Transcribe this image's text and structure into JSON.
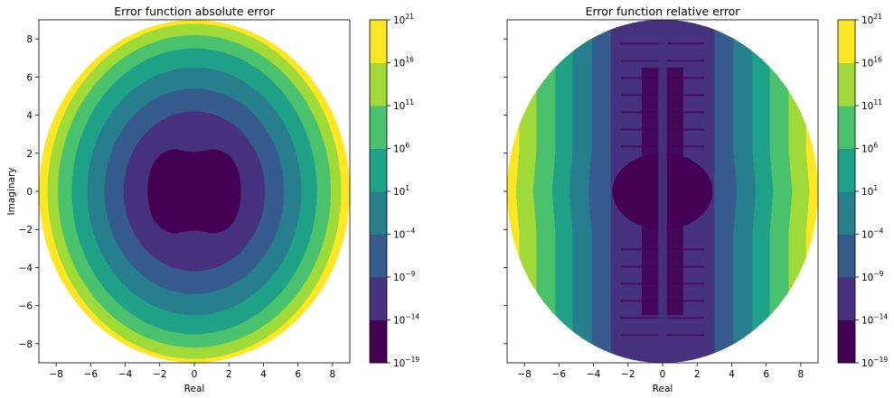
{
  "chart_data": [
    {
      "type": "heatmap",
      "title": "Error function absolute error",
      "xlabel": "Real",
      "ylabel": "Imaginary",
      "xlim": [
        -9,
        9
      ],
      "ylim": [
        -9,
        9
      ],
      "xticks": [
        -8,
        -6,
        -4,
        -2,
        0,
        2,
        4,
        6,
        8
      ],
      "yticks": [
        -8,
        -6,
        -4,
        -2,
        0,
        2,
        4,
        6,
        8
      ],
      "region": "disc, radius ≈ 9",
      "levels": [
        {
          "range": [
            "10^-19",
            "10^-14"
          ],
          "color": "#440154",
          "shape": "blob",
          "extent_x": [
            -2.7,
            2.7
          ],
          "extent_y": [
            -2.2,
            2.2
          ]
        },
        {
          "range": [
            "10^-14",
            "10^-9"
          ],
          "color": "#46327e",
          "shape": "ring",
          "extent_x": [
            -4.1,
            4.1
          ],
          "extent_y": [
            -4.2,
            4.2
          ]
        },
        {
          "range": [
            "10^-9",
            "10^-4"
          ],
          "color": "#365c8d",
          "shape": "ring",
          "extent_x": [
            -5.2,
            5.2
          ],
          "extent_y": [
            -5.4,
            5.4
          ]
        },
        {
          "range": [
            "10^-4",
            "10^1"
          ],
          "color": "#277f8e",
          "shape": "ring",
          "extent_x": [
            -6.2,
            6.2
          ],
          "extent_y": [
            -6.5,
            6.5
          ]
        },
        {
          "range": [
            "10^1",
            "10^6"
          ],
          "color": "#1fa187",
          "shape": "ring",
          "extent_x": [
            -7.1,
            7.1
          ],
          "extent_y": [
            -7.5,
            7.5
          ]
        },
        {
          "range": [
            "10^6",
            "10^11"
          ],
          "color": "#4ac16d",
          "shape": "ring",
          "extent_x": [
            -7.9,
            7.9
          ],
          "extent_y": [
            -8.2,
            8.2
          ]
        },
        {
          "range": [
            "10^11",
            "10^16"
          ],
          "color": "#a0da39",
          "shape": "ring",
          "extent_x": [
            -8.5,
            8.5
          ],
          "extent_y": [
            -8.8,
            8.8
          ]
        },
        {
          "range": [
            "10^16",
            "10^21"
          ],
          "color": "#fde725",
          "shape": "ring",
          "extent_x": [
            -9,
            9
          ],
          "extent_y": [
            -9,
            9
          ]
        }
      ]
    },
    {
      "type": "heatmap",
      "title": "Error function relative error",
      "xlabel": "Real",
      "ylabel": "",
      "xlim": [
        -9,
        9
      ],
      "ylim": [
        -9,
        9
      ],
      "xticks": [
        -8,
        -6,
        -4,
        -2,
        0,
        2,
        4,
        6,
        8
      ],
      "yticks": [
        -8,
        -6,
        -4,
        -2,
        0,
        2,
        4,
        6,
        8
      ],
      "region": "disc, radius ≈ 9",
      "levels": [
        {
          "range": [
            "10^-19",
            "10^-14"
          ],
          "color": "#440154",
          "shape": "blob plus vertical strip",
          "extent_x": [
            -2.9,
            2.9
          ],
          "extent_y": [
            -2.0,
            2.0
          ]
        },
        {
          "range": [
            "10^-14",
            "10^-9"
          ],
          "color": "#46327e",
          "shape": "vertical band",
          "extent_x": [
            -3.0,
            3.0
          ],
          "extent_y": [
            -9,
            9
          ]
        },
        {
          "range": [
            "10^-9",
            "10^-4"
          ],
          "color": "#365c8d",
          "shape": "side bands",
          "extent_x": [
            -4.1,
            4.1
          ],
          "extent_y": [
            -9,
            9
          ]
        },
        {
          "range": [
            "10^-4",
            "10^1"
          ],
          "color": "#277f8e",
          "shape": "side bands",
          "extent_x": [
            -5.2,
            5.2
          ],
          "extent_y": [
            -9,
            9
          ]
        },
        {
          "range": [
            "10^1",
            "10^6"
          ],
          "color": "#1fa187",
          "shape": "side bands",
          "extent_x": [
            -6.2,
            6.2
          ],
          "extent_y": [
            -9,
            9
          ]
        },
        {
          "range": [
            "10^6",
            "10^11"
          ],
          "color": "#4ac16d",
          "shape": "side bands",
          "extent_x": [
            -7.3,
            7.3
          ],
          "extent_y": [
            -9,
            9
          ]
        },
        {
          "range": [
            "10^11",
            "10^16"
          ],
          "color": "#a0da39",
          "shape": "side bands",
          "extent_x": [
            -8.3,
            8.3
          ],
          "extent_y": [
            -9,
            9
          ]
        },
        {
          "range": [
            "10^16",
            "10^21"
          ],
          "color": "#fde725",
          "shape": "side bands",
          "extent_x": [
            -9,
            9
          ],
          "extent_y": [
            -9,
            9
          ]
        }
      ]
    }
  ],
  "colorbar": {
    "ticks": [
      {
        "base": "10",
        "exp": "−19"
      },
      {
        "base": "10",
        "exp": "−14"
      },
      {
        "base": "10",
        "exp": "−9"
      },
      {
        "base": "10",
        "exp": "−4"
      },
      {
        "base": "10",
        "exp": "1"
      },
      {
        "base": "10",
        "exp": "6"
      },
      {
        "base": "10",
        "exp": "11"
      },
      {
        "base": "10",
        "exp": "16"
      },
      {
        "base": "10",
        "exp": "21"
      }
    ],
    "colors": [
      "#440154",
      "#46327e",
      "#365c8d",
      "#277f8e",
      "#1fa187",
      "#4ac16d",
      "#a0da39",
      "#fde725"
    ]
  }
}
